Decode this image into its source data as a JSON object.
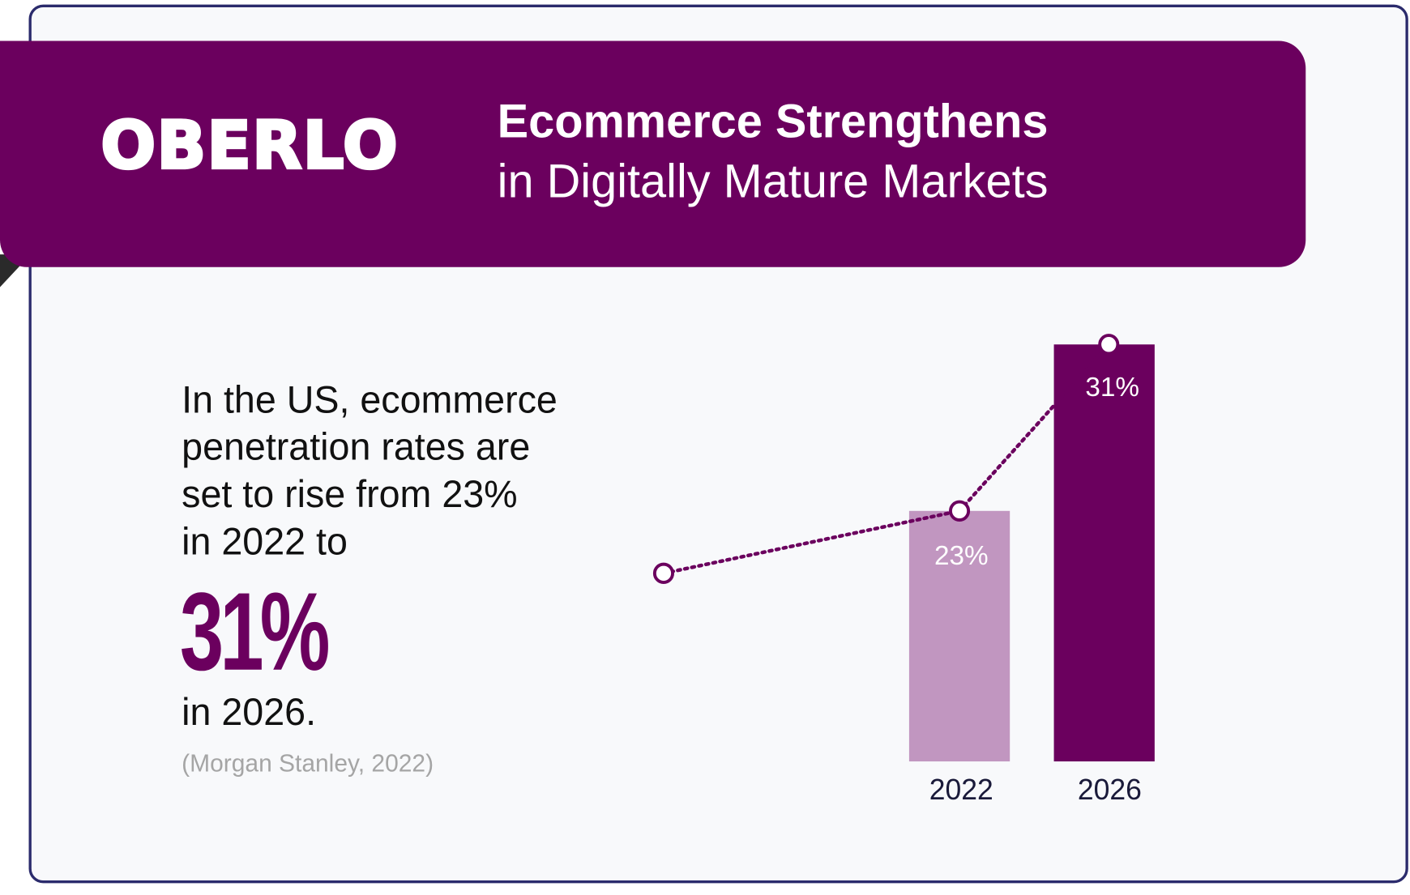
{
  "brand": {
    "logo": "OBERLO",
    "color": "#6b005e"
  },
  "header": {
    "title_line1": "Ecommerce Strengthens",
    "title_line2": "in Digitally Mature Markets"
  },
  "text": {
    "lines": [
      "In the US, ecommerce",
      "penetration rates are",
      "set to rise from 23%",
      "in 2022 to"
    ],
    "highlight": "31%",
    "after": "in 2026.",
    "source": "(Morgan Stanley, 2022)"
  },
  "chart_data": {
    "type": "bar",
    "categories": [
      "2022",
      "2026"
    ],
    "values": [
      23,
      31
    ],
    "data_labels": [
      "23%",
      "31%"
    ],
    "colors": [
      "#c196c0",
      "#6b005e"
    ],
    "trend_line": {
      "style": "dotted",
      "start_value": 20,
      "values": [
        23,
        31
      ]
    },
    "grid": false,
    "legend": "none"
  }
}
